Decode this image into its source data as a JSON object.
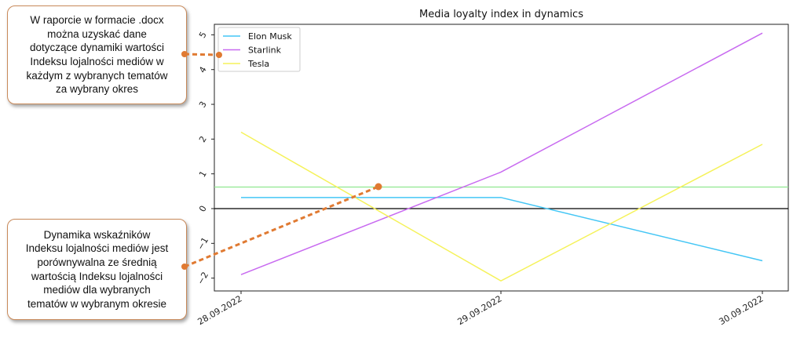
{
  "callouts": [
    {
      "lines": [
        "W raporcie w formacie .docx",
        "można uzyskać dane",
        "dotyczące dynamiki wartości",
        "Indeksu lojalności mediów w",
        "każdym z wybranych tematów",
        "za wybrany okres"
      ]
    },
    {
      "lines": [
        "Dynamika wskaźników",
        "Indeksu lojalności mediów jest",
        "porównywalna  ze średnią",
        "wartością  Indeksu lojalności",
        "mediów dla wybranych",
        "tematów w wybranym  okresie"
      ]
    }
  ],
  "colors": {
    "elon": "#44c6f5",
    "starlink": "#c86af0",
    "tesla": "#f5f25a",
    "average": "#90e890",
    "zero": "#000000",
    "callout_line": "#e07a32"
  },
  "chart_data": {
    "type": "line",
    "title": "Media loyalty index in dynamics",
    "categories": [
      "28.09.2022",
      "29.09.2022",
      "30.09.2022"
    ],
    "yticks": [
      "5",
      "4",
      "3",
      "2",
      "1",
      "0",
      "−1",
      "−2"
    ],
    "ylim": [
      -2.2,
      5.2
    ],
    "series": [
      {
        "name": "Elon Musk",
        "values": [
          0.32,
          0.32,
          -1.5
        ]
      },
      {
        "name": "Starlink",
        "values": [
          -1.9,
          1.05,
          5.05
        ]
      },
      {
        "name": "Tesla",
        "values": [
          2.2,
          -2.08,
          1.85
        ]
      }
    ],
    "average_value": 0.62,
    "zero_value": 0,
    "legend_position": "top-left"
  }
}
